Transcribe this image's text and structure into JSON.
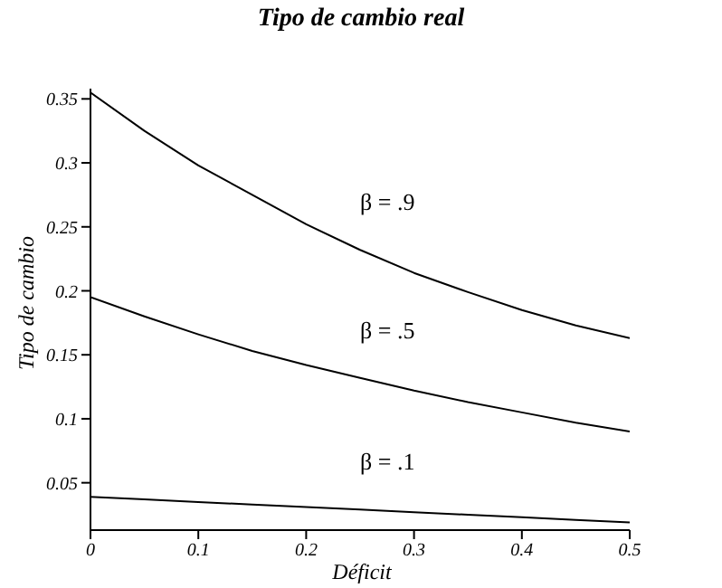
{
  "chart_data": {
    "type": "line",
    "title": "Tipo de cambio real",
    "xlabel": "Déficit",
    "ylabel": "Tipo de cambio",
    "x": [
      0,
      0.05,
      0.1,
      0.15,
      0.2,
      0.25,
      0.3,
      0.35,
      0.4,
      0.45,
      0.5
    ],
    "series": [
      {
        "name": "β = .9",
        "color": "#000000",
        "values": [
          0.355,
          0.325,
          0.298,
          0.275,
          0.252,
          0.232,
          0.214,
          0.199,
          0.185,
          0.173,
          0.163
        ]
      },
      {
        "name": "β = .5",
        "color": "#000000",
        "values": [
          0.195,
          0.18,
          0.166,
          0.153,
          0.142,
          0.132,
          0.122,
          0.113,
          0.105,
          0.097,
          0.09
        ]
      },
      {
        "name": "β = .1",
        "color": "#000000",
        "values": [
          0.039,
          0.037,
          0.035,
          0.033,
          0.031,
          0.029,
          0.027,
          0.025,
          0.023,
          0.021,
          0.019
        ]
      }
    ],
    "xlim": [
      0,
      0.5
    ],
    "xticks": [
      0,
      0.1,
      0.2,
      0.3,
      0.4,
      0.5
    ],
    "ylim": [
      0.013,
      0.358
    ],
    "yticks": [
      0.05,
      0.1,
      0.15,
      0.2,
      0.25,
      0.3,
      0.35
    ],
    "grid": false,
    "legend": false,
    "marker": "none",
    "line_style": "solid"
  }
}
